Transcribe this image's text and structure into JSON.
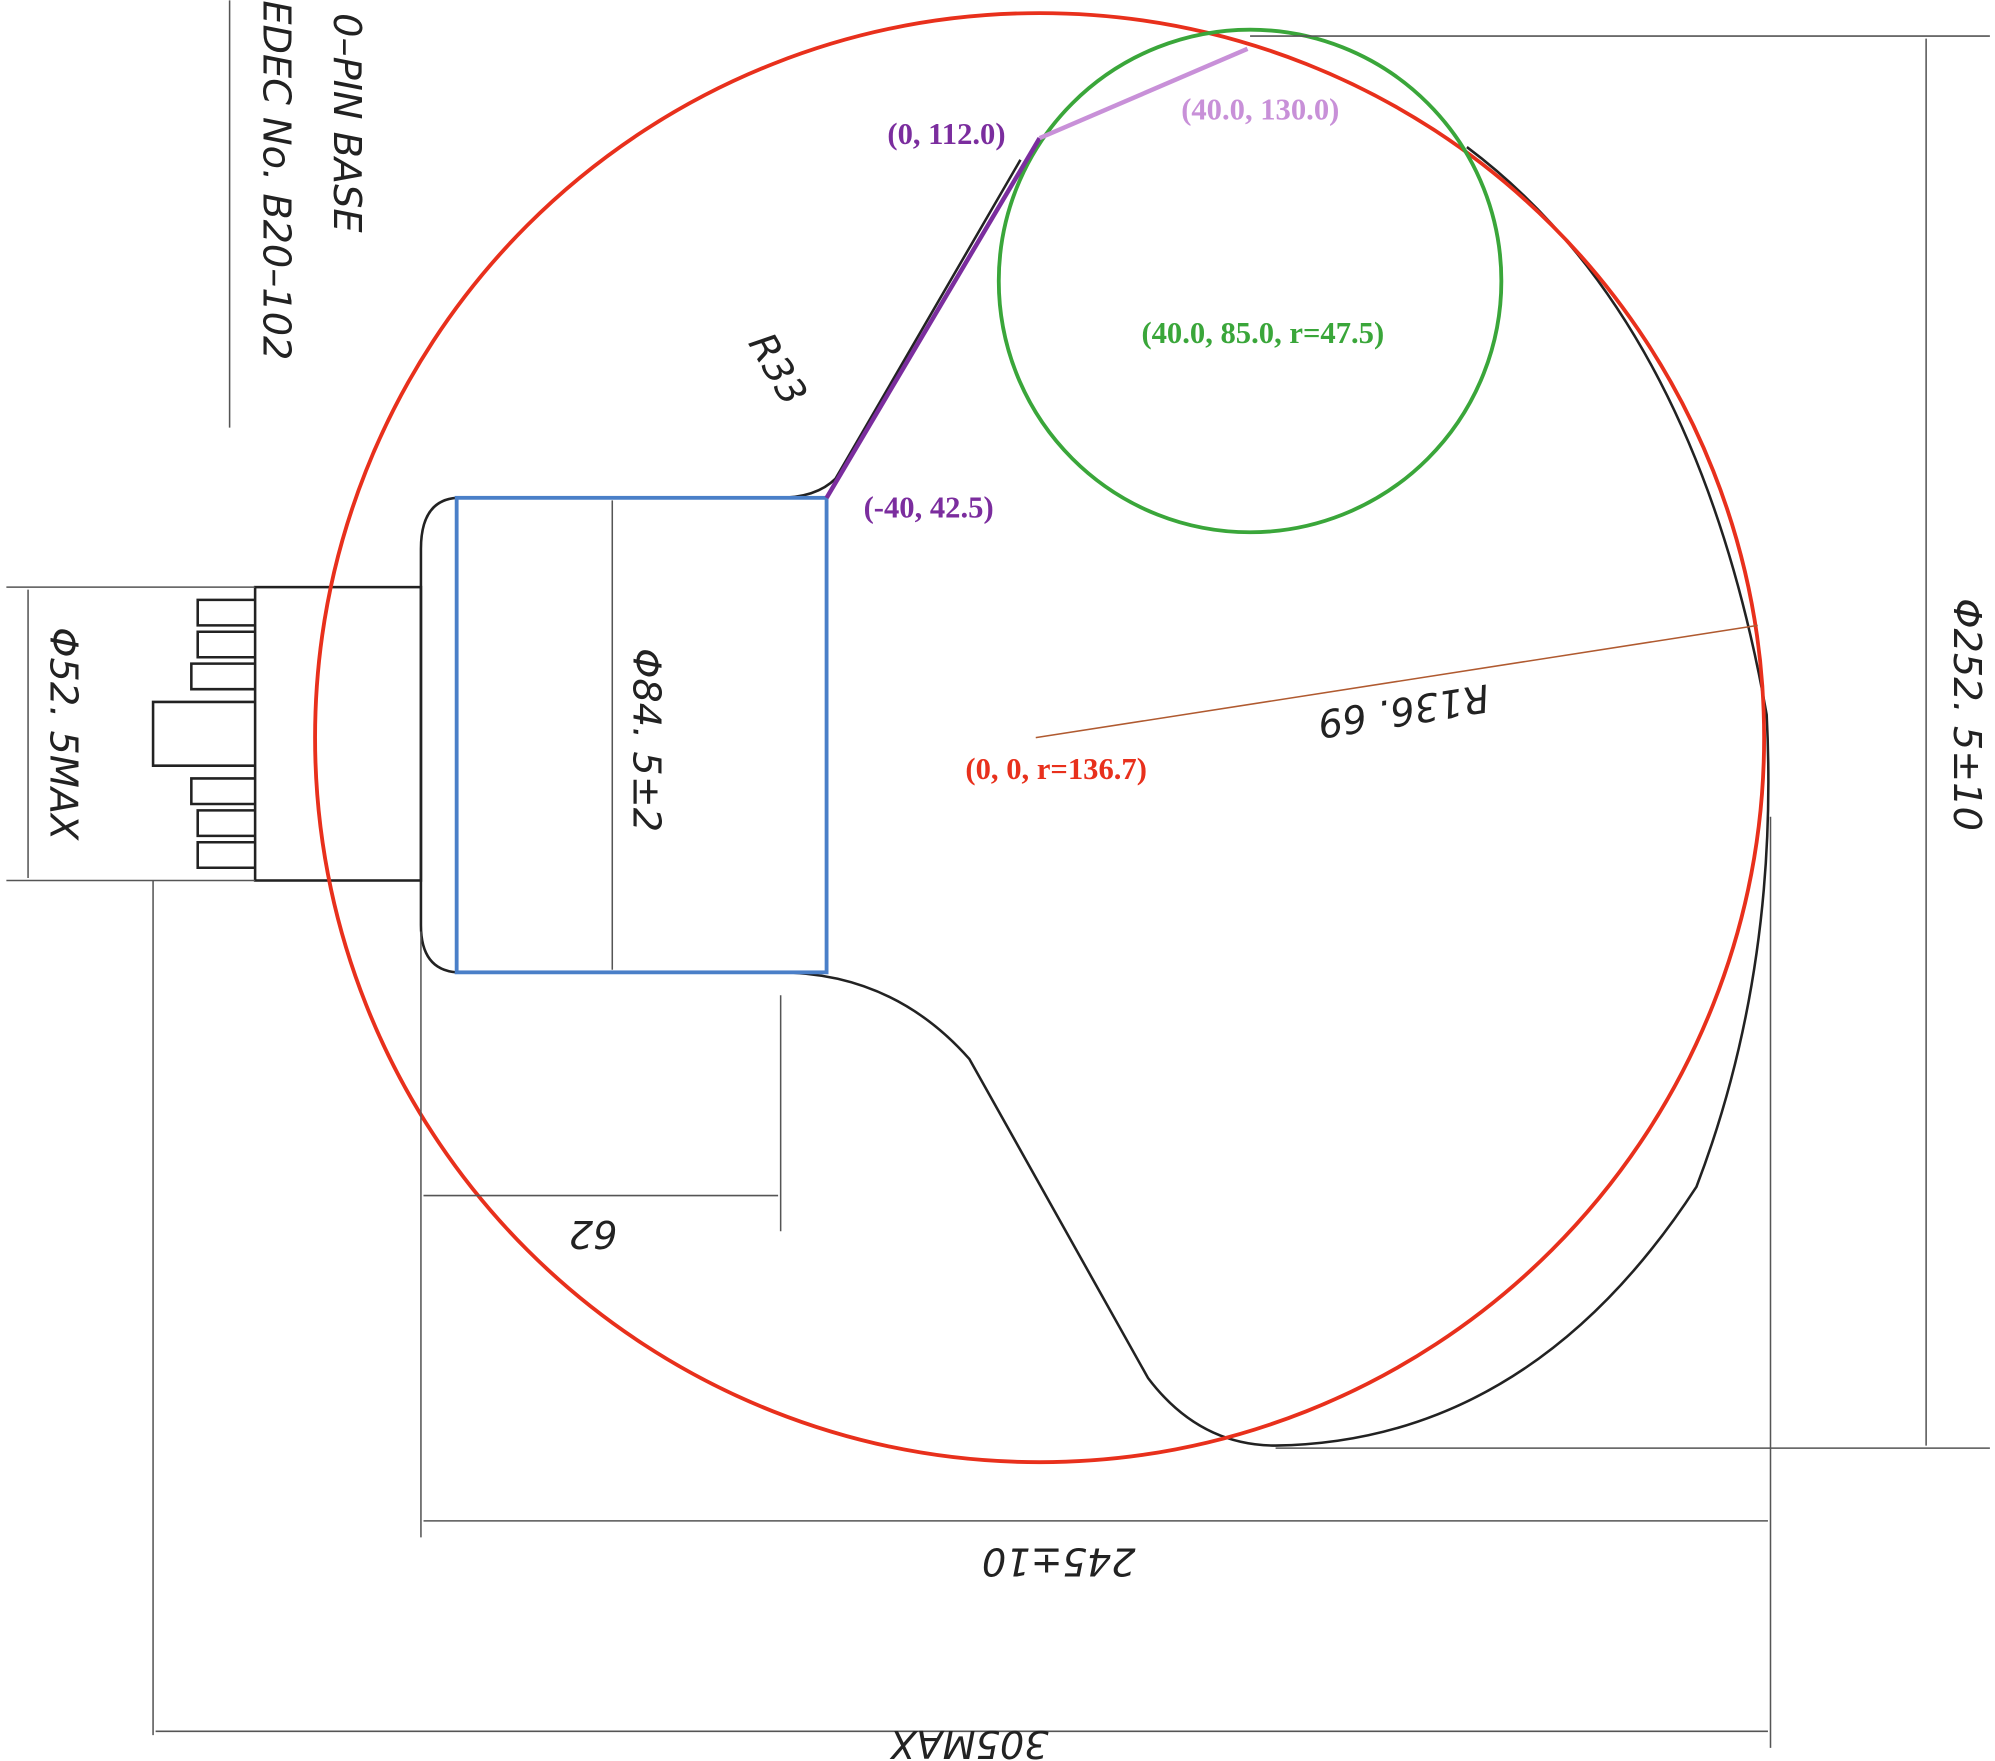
{
  "drawing": {
    "base_label": "0–PIN BASE",
    "jedec_label": "EDEC No. B20–102",
    "dimensions": {
      "base_diameter": "Φ52. 5MAX",
      "neck_diameter": "Φ84. 5±2",
      "neck_radius": "R33",
      "bulb_radius": "R136. 69",
      "bulb_diameter": "Φ252. 5±10",
      "neck_length": "62",
      "body_length": "245±10",
      "overall_length": "305MAX"
    },
    "annotations": {
      "line_top": "(0, 112.0)",
      "line_end": "(40.0, 130.0)",
      "small_circle": "(40.0, 85.0, r=47.5)",
      "line_start": "(-40, 42.5)",
      "big_circle": "(0, 0, r=136.7)"
    }
  }
}
